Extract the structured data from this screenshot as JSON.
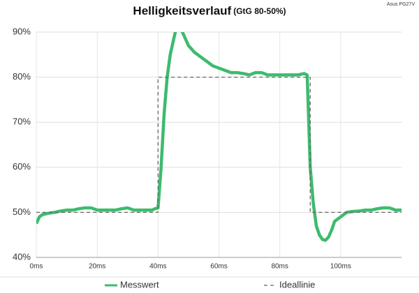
{
  "chart_data": {
    "type": "line",
    "title": "Helligkeitsverlauf",
    "subtitle": "(GtG 80-50%)",
    "annotation": "Asus PG27V",
    "xlim": [
      0,
      120
    ],
    "xticks": [
      {
        "value": 0,
        "label": "0ms"
      },
      {
        "value": 20,
        "label": "20ms"
      },
      {
        "value": 40,
        "label": "40ms"
      },
      {
        "value": 60,
        "label": "60ms"
      },
      {
        "value": 80,
        "label": "80ms"
      },
      {
        "value": 100,
        "label": "100ms"
      }
    ],
    "ylim": [
      40,
      90
    ],
    "yticks": [
      {
        "value": 40,
        "label": "40%"
      },
      {
        "value": 50,
        "label": "50%"
      },
      {
        "value": 60,
        "label": "60%"
      },
      {
        "value": 70,
        "label": "70%"
      },
      {
        "value": 80,
        "label": "80%"
      },
      {
        "value": 90,
        "label": "90%"
      }
    ],
    "grid": true,
    "series": [
      {
        "name": "Messwert",
        "color": "#3dbb6e",
        "dash": false,
        "x": [
          0,
          1,
          2,
          4,
          6,
          8,
          10,
          12,
          14,
          16,
          18,
          20,
          22,
          24,
          26,
          28,
          30,
          32,
          34,
          36,
          38,
          39,
          40,
          41,
          42,
          43,
          44,
          45,
          46,
          47,
          48,
          49,
          50,
          52,
          54,
          56,
          58,
          60,
          62,
          64,
          66,
          68,
          70,
          72,
          74,
          76,
          78,
          80,
          82,
          84,
          86,
          88,
          89,
          90,
          91,
          92,
          93,
          94,
          95,
          96,
          97,
          98,
          100,
          102,
          104,
          106,
          108,
          110,
          112,
          114,
          116,
          118,
          120
        ],
        "values": [
          47.5,
          49,
          49.5,
          49.8,
          50,
          50.3,
          50.5,
          50.5,
          50.8,
          51,
          51,
          50.5,
          50.5,
          50.5,
          50.5,
          50.8,
          51,
          50.5,
          50.5,
          50.5,
          50.5,
          50.8,
          51,
          60,
          72,
          80,
          85,
          88,
          91,
          91,
          90,
          88.5,
          87,
          85.5,
          84.5,
          83.5,
          82.5,
          82,
          81.5,
          81,
          81,
          80.8,
          80.5,
          81,
          81,
          80.5,
          80.5,
          80.5,
          80.5,
          80.5,
          80.5,
          80.8,
          80.5,
          60,
          52,
          47,
          45,
          44,
          43.8,
          44.5,
          46,
          48,
          49,
          50,
          50.2,
          50.3,
          50.5,
          50.5,
          50.8,
          51,
          51,
          50.5,
          50.5
        ]
      },
      {
        "name": "Ideallinie",
        "color": "#666666",
        "dash": true,
        "x": [
          0,
          40,
          40,
          90,
          90,
          120
        ],
        "values": [
          50,
          50,
          80,
          80,
          50,
          50
        ]
      }
    ]
  }
}
